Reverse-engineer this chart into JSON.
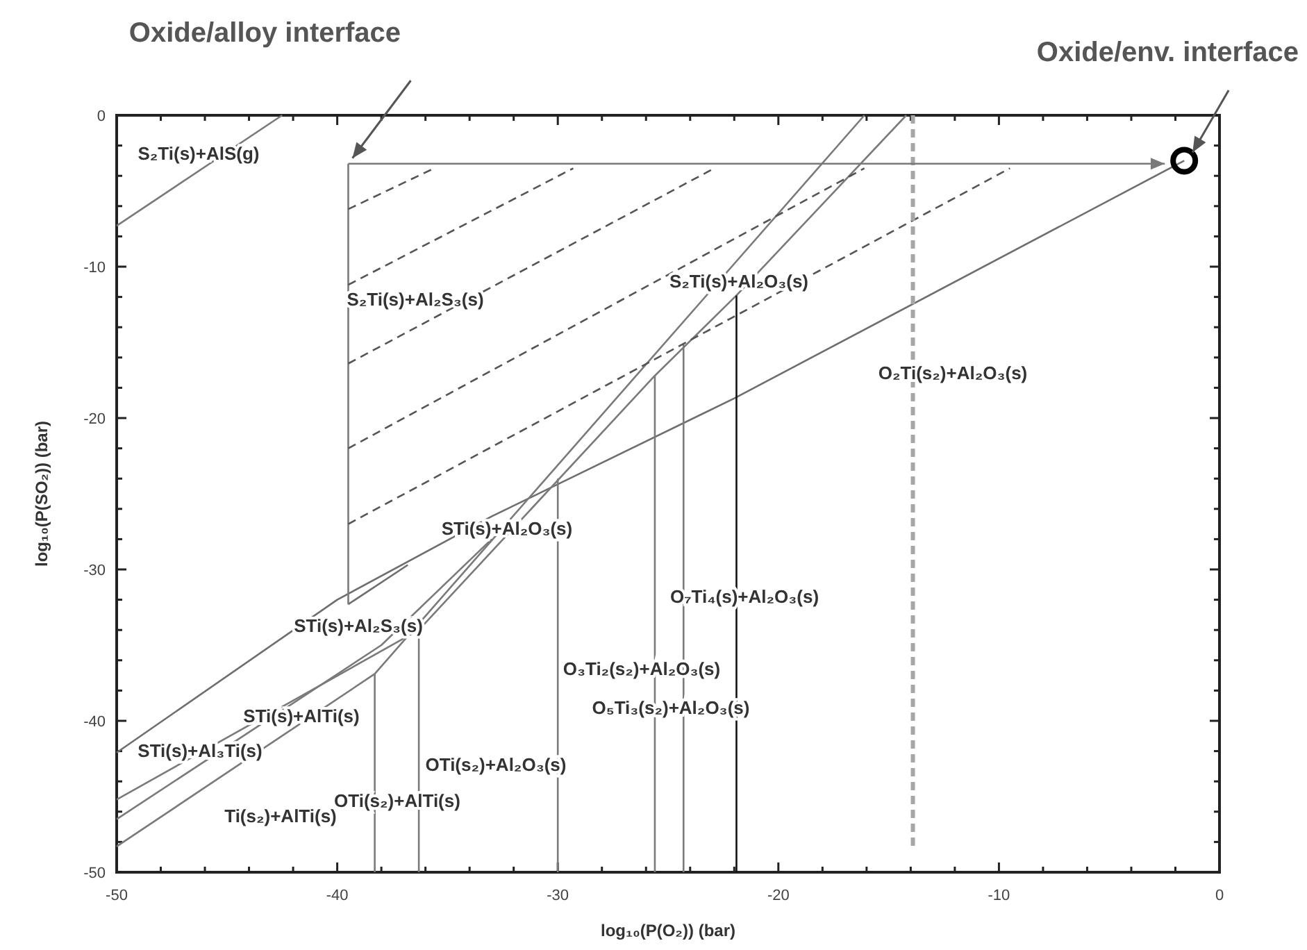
{
  "chart_data": {
    "type": "line",
    "xlabel": "log₁₀(P(O₂)) (bar)",
    "ylabel": "log₁₀(P(SO₂)) (bar)",
    "xlim": [
      -50,
      0
    ],
    "ylim": [
      -50,
      0
    ],
    "xticks": [
      -50,
      {
        "value": -48,
        "label": null
      },
      {
        "value": -46,
        "label": null
      },
      {
        "value": -44,
        "label": null
      },
      {
        "value": -42,
        "label": null
      },
      -40,
      {
        "value": -38,
        "label": null
      },
      {
        "value": -36,
        "label": null
      },
      {
        "value": -34,
        "label": null
      },
      {
        "value": -32,
        "label": null
      },
      -30,
      {
        "value": -28,
        "label": null
      },
      {
        "value": -26,
        "label": null
      },
      {
        "value": -24,
        "label": null
      },
      {
        "value": -22,
        "label": null
      },
      -20,
      {
        "value": -18,
        "label": null
      },
      {
        "value": -16,
        "label": null
      },
      {
        "value": -14,
        "label": null
      },
      {
        "value": -12,
        "label": null
      },
      -10,
      {
        "value": -8,
        "label": null
      },
      {
        "value": -6,
        "label": null
      },
      {
        "value": -4,
        "label": null
      },
      {
        "value": -2,
        "label": null
      },
      0
    ],
    "yticks": [
      -50,
      {
        "value": -48,
        "label": null
      },
      {
        "value": -46,
        "label": null
      },
      {
        "value": -44,
        "label": null
      },
      {
        "value": -42,
        "label": null
      },
      -40,
      {
        "value": -38,
        "label": null
      },
      {
        "value": -36,
        "label": null
      },
      {
        "value": -34,
        "label": null
      },
      {
        "value": -32,
        "label": null
      },
      -30,
      {
        "value": -28,
        "label": null
      },
      {
        "value": -26,
        "label": null
      },
      {
        "value": -24,
        "label": null
      },
      {
        "value": -22,
        "label": null
      },
      -20,
      {
        "value": -18,
        "label": null
      },
      {
        "value": -16,
        "label": null
      },
      {
        "value": -14,
        "label": null
      },
      {
        "value": -12,
        "label": null
      },
      -10,
      {
        "value": -8,
        "label": null
      },
      {
        "value": -6,
        "label": null
      },
      {
        "value": -4,
        "label": null
      },
      {
        "value": -2,
        "label": null
      },
      0
    ],
    "marker": "none",
    "line_style": "solid",
    "series": [
      {
        "color": "#7a7a7a",
        "x": [
          -50,
          -42.5
        ],
        "values": [
          -7.3,
          0
        ]
      },
      {
        "color": "#6e6e6e",
        "x": [
          -50,
          -40,
          -33,
          -22,
          -1.6
        ],
        "values": [
          -42.1,
          -32,
          -26.5,
          -18.7,
          -3
        ]
      },
      {
        "color": "#7a7a7a",
        "x": [
          -50,
          -36.3,
          -25.6,
          -21.9,
          -14.2
        ],
        "values": [
          -45.2,
          -34,
          -17.2,
          -11.9,
          0
        ]
      },
      {
        "color": "#7a7a7a",
        "x": [
          -50,
          -38,
          -33
        ],
        "values": [
          -46.5,
          -35,
          -28
        ]
      },
      {
        "color": "#7a7a7a",
        "x": [
          -50,
          -38.3,
          -16.1
        ],
        "values": [
          -48.3,
          -36.9,
          0
        ]
      },
      {
        "color": "#6e6e6e",
        "x": [
          -39.5,
          -36.8
        ],
        "values": [
          -32.3,
          -29.7
        ]
      },
      {
        "color": "#7a7a7a",
        "x": [
          -39.5,
          -39.5
        ],
        "values": [
          -3.2,
          -32.3
        ]
      },
      {
        "color": "#7a7a7a",
        "x": [
          -38.3,
          -38.3
        ],
        "values": [
          -50,
          -36.9
        ]
      },
      {
        "color": "#7a7a7a",
        "x": [
          -36.3,
          -36.3
        ],
        "values": [
          -50,
          -34
        ]
      },
      {
        "color": "#7a7a7a",
        "x": [
          -30,
          -30
        ],
        "values": [
          -50,
          -24
        ]
      },
      {
        "color": "#7a7a7a",
        "x": [
          -25.6,
          -25.6
        ],
        "values": [
          -50,
          -17.2
        ]
      },
      {
        "color": "#7a7a7a",
        "x": [
          -24.3,
          -24.3
        ],
        "values": [
          -50,
          -15.1
        ]
      },
      {
        "color": "#111111",
        "x": [
          -21.9,
          -21.9
        ],
        "values": [
          -50,
          -11.9
        ]
      },
      {
        "color": "#555555",
        "line_style": "dashed",
        "x": [
          -39.5,
          -35.6
        ],
        "values": [
          -6.2,
          -3.5
        ]
      },
      {
        "color": "#555555",
        "line_style": "dashed",
        "x": [
          -39.5,
          -29.3
        ],
        "values": [
          -11.2,
          -3.5
        ]
      },
      {
        "color": "#555555",
        "line_style": "dashed",
        "x": [
          -39.5,
          -22.9
        ],
        "values": [
          -16.4,
          -3.5
        ]
      },
      {
        "color": "#555555",
        "line_style": "dashed",
        "x": [
          -39.5,
          -16.1
        ],
        "values": [
          -22,
          -3.5
        ]
      },
      {
        "color": "#555555",
        "line_style": "dashed",
        "x": [
          -39.5,
          -9.5
        ],
        "values": [
          -27,
          -3.5
        ]
      },
      {
        "color": "#a6a6a6",
        "line_style": "dashed",
        "x": [
          -13.9,
          -13.9
        ],
        "values": [
          0,
          -48.6
        ]
      },
      {
        "type": "scatter",
        "marker": "circle",
        "color": "#000000",
        "x": [
          -1.6
        ],
        "values": [
          -3
        ]
      }
    ],
    "annotations": [
      {
        "text": "Oxide/alloy interface",
        "x": -39.5,
        "y": -3.2
      },
      {
        "text": "Oxide/env. interface",
        "x": -1.6,
        "y": -3
      },
      "S₂Ti(s)+AlS(g)",
      "S₂Ti(s)+Al₂S₃(s)",
      "S₂Ti(s)+Al₂O₃(s)",
      "O₂Ti(s₂)+Al₂O₃(s)",
      "STi(s)+Al₂O₃(s)",
      "O₇Ti₄(s)+Al₂O₃(s)",
      "STi(s)+Al₂S₃(s)",
      "O₃Ti₂(s₂)+Al₂O₃(s)",
      "O₅Ti₃(s₂)+Al₂O₃(s)",
      "STi(s)+AlTi(s)",
      "STi(s)+Al₃Ti(s)",
      "OTi(s₂)+Al₂O₃(s)",
      "OTi(s₂)+AlTi(s)",
      "Ti(s₂)+AlTi(s)"
    ]
  }
}
